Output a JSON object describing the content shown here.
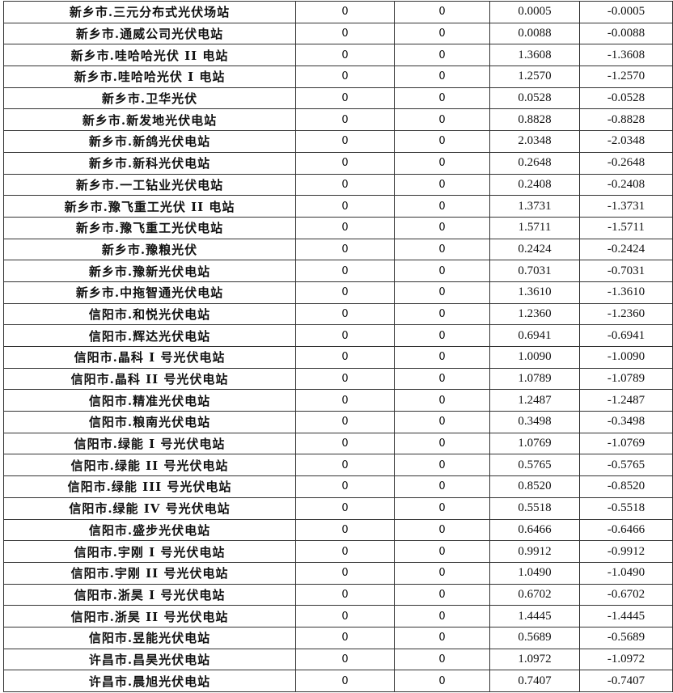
{
  "table": {
    "rows": [
      [
        "新乡市.三元分布式光伏场站",
        "0",
        "0",
        "0.0005",
        "-0.0005"
      ],
      [
        "新乡市.通威公司光伏电站",
        "0",
        "0",
        "0.0088",
        "-0.0088"
      ],
      [
        "新乡市.哇哈哈光伏 II 电站",
        "0",
        "0",
        "1.3608",
        "-1.3608"
      ],
      [
        "新乡市.哇哈哈光伏 I 电站",
        "0",
        "0",
        "1.2570",
        "-1.2570"
      ],
      [
        "新乡市.卫华光伏",
        "0",
        "0",
        "0.0528",
        "-0.0528"
      ],
      [
        "新乡市.新发地光伏电站",
        "0",
        "0",
        "0.8828",
        "-0.8828"
      ],
      [
        "新乡市.新鸽光伏电站",
        "0",
        "0",
        "2.0348",
        "-2.0348"
      ],
      [
        "新乡市.新科光伏电站",
        "0",
        "0",
        "0.2648",
        "-0.2648"
      ],
      [
        "新乡市.一工钻业光伏电站",
        "0",
        "0",
        "0.2408",
        "-0.2408"
      ],
      [
        "新乡市.豫飞重工光伏 II 电站",
        "0",
        "0",
        "1.3731",
        "-1.3731"
      ],
      [
        "新乡市.豫飞重工光伏电站",
        "0",
        "0",
        "1.5711",
        "-1.5711"
      ],
      [
        "新乡市.豫粮光伏",
        "0",
        "0",
        "0.2424",
        "-0.2424"
      ],
      [
        "新乡市.豫新光伏电站",
        "0",
        "0",
        "0.7031",
        "-0.7031"
      ],
      [
        "新乡市.中拖智通光伏电站",
        "0",
        "0",
        "1.3610",
        "-1.3610"
      ],
      [
        "信阳市.和悦光伏电站",
        "0",
        "0",
        "1.2360",
        "-1.2360"
      ],
      [
        "信阳市.辉达光伏电站",
        "0",
        "0",
        "0.6941",
        "-0.6941"
      ],
      [
        "信阳市.晶科 I 号光伏电站",
        "0",
        "0",
        "1.0090",
        "-1.0090"
      ],
      [
        "信阳市.晶科 II 号光伏电站",
        "0",
        "0",
        "1.0789",
        "-1.0789"
      ],
      [
        "信阳市.精准光伏电站",
        "0",
        "0",
        "1.2487",
        "-1.2487"
      ],
      [
        "信阳市.粮南光伏电站",
        "0",
        "0",
        "0.3498",
        "-0.3498"
      ],
      [
        "信阳市.绿能 I 号光伏电站",
        "0",
        "0",
        "1.0769",
        "-1.0769"
      ],
      [
        "信阳市.绿能 II 号光伏电站",
        "0",
        "0",
        "0.5765",
        "-0.5765"
      ],
      [
        "信阳市.绿能 III 号光伏电站",
        "0",
        "0",
        "0.8520",
        "-0.8520"
      ],
      [
        "信阳市.绿能 IV 号光伏电站",
        "0",
        "0",
        "0.5518",
        "-0.5518"
      ],
      [
        "信阳市.盛步光伏电站",
        "0",
        "0",
        "0.6466",
        "-0.6466"
      ],
      [
        "信阳市.宇刚 I 号光伏电站",
        "0",
        "0",
        "0.9912",
        "-0.9912"
      ],
      [
        "信阳市.宇刚 II 号光伏电站",
        "0",
        "0",
        "1.0490",
        "-1.0490"
      ],
      [
        "信阳市.浙昊 I 号光伏电站",
        "0",
        "0",
        "0.6702",
        "-0.6702"
      ],
      [
        "信阳市.浙昊 II 号光伏电站",
        "0",
        "0",
        "1.4445",
        "-1.4445"
      ],
      [
        "信阳市.昱能光伏电站",
        "0",
        "0",
        "0.5689",
        "-0.5689"
      ],
      [
        "许昌市.昌昊光伏电站",
        "0",
        "0",
        "1.0972",
        "-1.0972"
      ],
      [
        "许昌市.晨旭光伏电站",
        "0",
        "0",
        "0.7407",
        "-0.7407"
      ]
    ]
  }
}
